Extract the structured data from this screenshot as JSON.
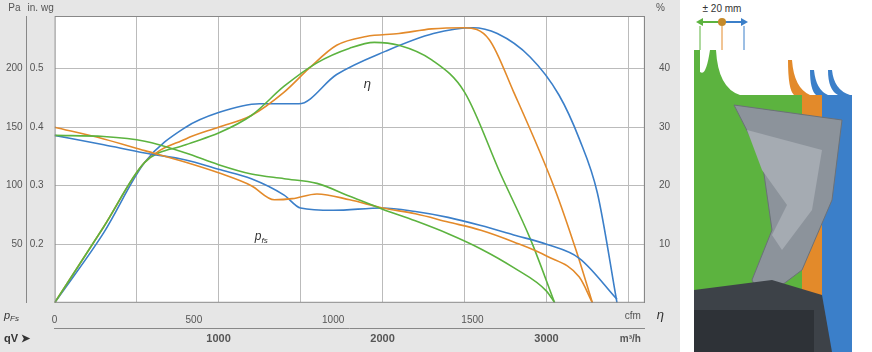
{
  "chart_data": {
    "type": "line",
    "x_label": "m³/h",
    "x2_label": "cfm",
    "y_label": "Pa",
    "y3_label": "in. wg",
    "y2_label": "%",
    "corner_labels": {
      "y": "pFs",
      "y2": "η",
      "x": "qV ➤"
    },
    "annotations": [
      {
        "text": "η"
      },
      {
        "text": "pfs"
      }
    ],
    "xlim": [
      0,
      3600
    ],
    "xticks": [
      {
        "value": 500,
        "label": null
      },
      1000,
      {
        "value": 1500,
        "label": null
      },
      2000,
      {
        "value": 2500,
        "label": null
      },
      3000,
      {
        "value": 3500,
        "label": null
      }
    ],
    "x2lim": [
      0,
      2119
    ],
    "x2ticks": [
      0,
      500,
      1000,
      1500
    ],
    "ylim": [
      0,
      245
    ],
    "yticks": [
      50,
      100,
      150,
      200
    ],
    "y3lim": [
      0.1,
      0.59
    ],
    "y3ticks": [
      0.2,
      0.3,
      0.4,
      0.5
    ],
    "y2lim": [
      0,
      49
    ],
    "y2ticks": [
      10,
      20,
      30,
      40
    ],
    "grid": true,
    "marker": "none",
    "line_style": "solid",
    "series": [
      {
        "color": "#5cb33f",
        "axis": "y",
        "x": [
          0,
          300,
          550,
          800,
          1000,
          1200,
          1400,
          1600,
          1800,
          2000,
          2200,
          2400,
          2600,
          2800,
          3000,
          3050
        ],
        "values": [
          143,
          142,
          138,
          128,
          118,
          110,
          106,
          102,
          91,
          80,
          70,
          59,
          46,
          30,
          10,
          0
        ]
      },
      {
        "color": "#e38a2a",
        "axis": "y",
        "x": [
          0,
          300,
          550,
          800,
          1000,
          1200,
          1340,
          1450,
          1600,
          1800,
          2000,
          2200,
          2400,
          2600,
          2800,
          3000,
          3200,
          3280
        ],
        "values": [
          150,
          140,
          130,
          120,
          111,
          100,
          88,
          89,
          93,
          88,
          81,
          76,
          69,
          62,
          52,
          40,
          22,
          0
        ]
      },
      {
        "color": "#3b7fc9",
        "axis": "y",
        "x": [
          0,
          300,
          550,
          800,
          1000,
          1200,
          1400,
          1500,
          1700,
          2000,
          2200,
          2400,
          2600,
          2800,
          3000,
          3200,
          3430
        ],
        "values": [
          143,
          135,
          128,
          122,
          114,
          106,
          92,
          81,
          79,
          81,
          78,
          73,
          66,
          58,
          50,
          38,
          3
        ]
      },
      {
        "color": "#5cb33f",
        "axis": "y2",
        "x": [
          0,
          300,
          550,
          800,
          1000,
          1200,
          1400,
          1600,
          1800,
          1950,
          2100,
          2300,
          2500,
          2720,
          2900,
          3050
        ],
        "values": [
          0,
          13,
          24,
          27,
          29,
          32,
          37,
          41,
          43.5,
          44.5,
          44,
          41.5,
          36,
          22,
          11,
          0
        ]
      },
      {
        "color": "#e38a2a",
        "axis": "y2",
        "x": [
          0,
          300,
          550,
          800,
          1000,
          1200,
          1400,
          1550,
          1720,
          1900,
          2100,
          2300,
          2500,
          2650,
          2800,
          3050,
          3180,
          3280
        ],
        "values": [
          0,
          13,
          24,
          28,
          30,
          32,
          36,
          40,
          44,
          45.5,
          46,
          46.8,
          47,
          45,
          36,
          19.5,
          9,
          0
        ]
      },
      {
        "color": "#3b7fc9",
        "axis": "y2",
        "x": [
          0,
          300,
          550,
          800,
          1000,
          1250,
          1490,
          1720,
          2020,
          2310,
          2550,
          2700,
          2900,
          3076,
          3200,
          3310,
          3430
        ],
        "values": [
          0,
          12,
          24,
          30,
          32.5,
          34,
          34,
          39,
          43,
          46,
          47,
          46,
          42,
          35.5,
          28,
          18.8,
          0
        ]
      }
    ]
  },
  "schematic": {
    "label": "± 20 mm"
  }
}
